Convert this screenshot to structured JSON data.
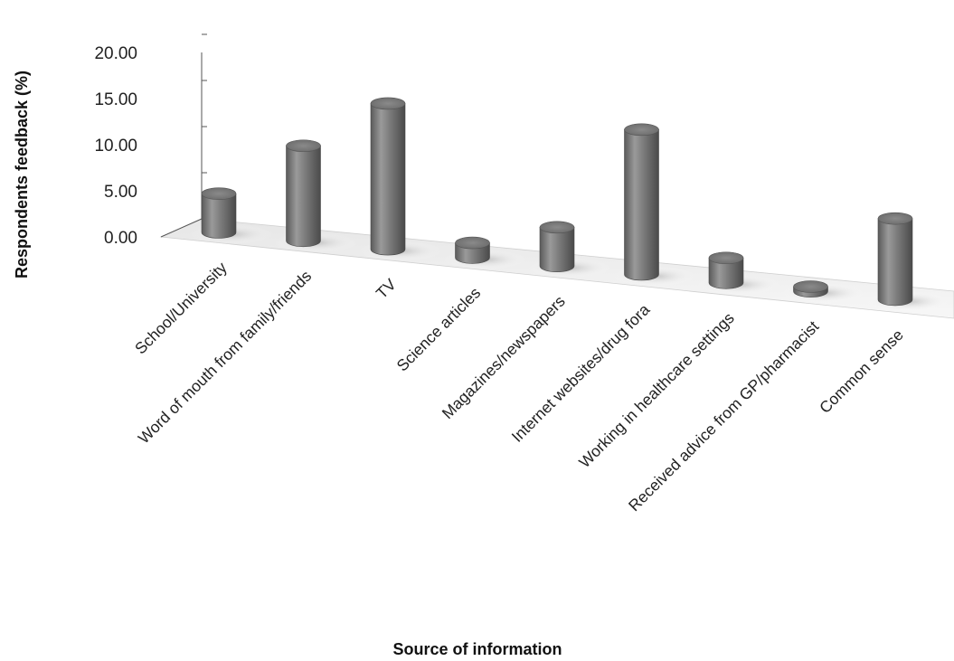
{
  "chart_data": {
    "type": "bar",
    "style": "3d-cylinder",
    "categories": [
      "School/University",
      "Word of mouth from family/friends",
      "TV",
      "Science articles",
      "Magazines/newspapers",
      "Internet websites/drug fora",
      "Working in healthcare settings",
      "Received advice from GP/pharmacist",
      "Common sense"
    ],
    "values": [
      4.2,
      10.3,
      15.8,
      1.6,
      4.2,
      15.7,
      2.7,
      0.5,
      8.8
    ],
    "title": "",
    "xlabel": "Source of information",
    "ylabel": "Respondents feedback (%)",
    "ylim": [
      0,
      20
    ],
    "yticks": [
      "0.00",
      "5.00",
      "10.00",
      "15.00",
      "20.00"
    ],
    "grid": false,
    "legend": "none",
    "bar_color": "#7a7a7a"
  }
}
